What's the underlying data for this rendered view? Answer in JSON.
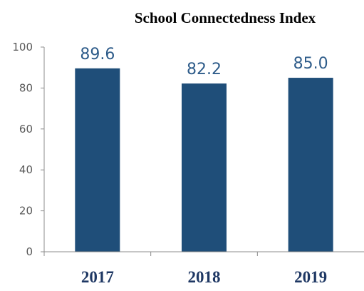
{
  "chart_data": {
    "type": "bar",
    "title": "School Connectedness Index",
    "categories": [
      "2017",
      "2018",
      "2019"
    ],
    "values": [
      89.6,
      82.2,
      85.0
    ],
    "data_labels": [
      "89.6",
      "82.2",
      "85.0"
    ],
    "xlabel": "",
    "ylabel": "",
    "ylim": [
      0,
      100
    ],
    "yticks": [
      "0",
      "20",
      "40",
      "60",
      "80",
      "100"
    ],
    "grid": false,
    "legend": "none",
    "colors": {
      "bar": "#1f4e79",
      "data_label": "#2e5c8a",
      "category_label": "#1f3864",
      "axis": "#8c8c8c"
    }
  }
}
